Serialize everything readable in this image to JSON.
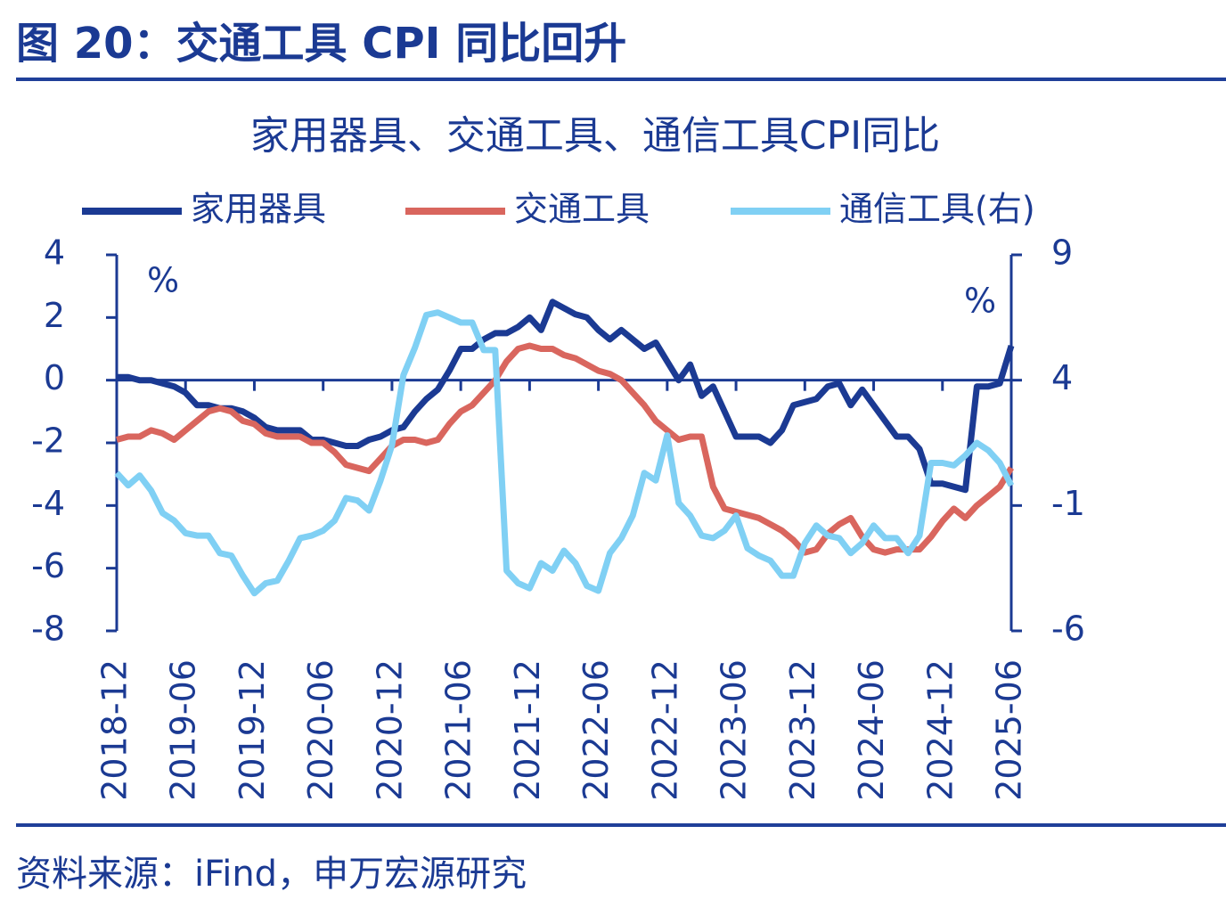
{
  "header": {
    "title": "图 20：交通工具 CPI 同比回升"
  },
  "chart_data": {
    "type": "line",
    "title": "家用器具、交通工具、通信工具CPI同比",
    "y_unit_label": "%",
    "y2_unit_label": "%",
    "categories": [
      "2018-12",
      null,
      null,
      null,
      null,
      null,
      "2019-06",
      null,
      null,
      null,
      null,
      null,
      "2019-12",
      null,
      null,
      null,
      null,
      null,
      "2020-06",
      null,
      null,
      null,
      null,
      null,
      "2020-12",
      null,
      null,
      null,
      null,
      null,
      "2021-06",
      null,
      null,
      null,
      null,
      null,
      "2021-12",
      null,
      null,
      null,
      null,
      null,
      "2022-06",
      null,
      null,
      null,
      null,
      null,
      "2022-12",
      null,
      null,
      null,
      null,
      null,
      "2023-06",
      null,
      null,
      null,
      null,
      null,
      "2023-12",
      null,
      null,
      null,
      null,
      null,
      "2024-06",
      null,
      null,
      null,
      null,
      null,
      "2024-12",
      null,
      null,
      null,
      null,
      null,
      "2025-06"
    ],
    "series": [
      {
        "name": "家用器具",
        "color": "#1b3a93",
        "values": [
          0.1,
          0.1,
          0.0,
          0.0,
          -0.1,
          -0.2,
          -0.4,
          -0.8,
          -0.8,
          -0.9,
          -0.9,
          -1.0,
          -1.2,
          -1.5,
          -1.6,
          -1.6,
          -1.6,
          -1.9,
          -1.9,
          -2.0,
          -2.1,
          -2.1,
          -1.9,
          -1.8,
          -1.6,
          -1.5,
          -1.0,
          -0.6,
          -0.3,
          0.3,
          1.0,
          1.0,
          1.3,
          1.5,
          1.5,
          1.7,
          2.0,
          1.6,
          2.5,
          2.3,
          2.1,
          2.0,
          1.6,
          1.3,
          1.6,
          1.3,
          1.0,
          1.2,
          0.6,
          0.0,
          0.5,
          -0.5,
          -0.2,
          -1.0,
          -1.8,
          -1.8,
          -1.8,
          -2.0,
          -1.6,
          -0.8,
          -0.7,
          -0.6,
          -0.2,
          -0.1,
          -0.8,
          -0.3,
          -0.8,
          -1.3,
          -1.8,
          -1.8,
          -2.2,
          -3.3,
          -3.3,
          -3.4,
          -3.5,
          -0.2,
          -0.2,
          -0.1,
          1.1
        ]
      },
      {
        "name": "交通工具",
        "color": "#d9665e",
        "values": [
          -1.9,
          -1.8,
          -1.8,
          -1.6,
          -1.7,
          -1.9,
          -1.6,
          -1.3,
          -1.0,
          -0.9,
          -1.0,
          -1.3,
          -1.4,
          -1.7,
          -1.8,
          -1.8,
          -1.8,
          -2.0,
          -2.0,
          -2.3,
          -2.7,
          -2.8,
          -2.9,
          -2.5,
          -2.1,
          -1.9,
          -1.9,
          -2.0,
          -1.9,
          -1.4,
          -1.0,
          -0.8,
          -0.4,
          0.0,
          0.6,
          1.0,
          1.1,
          1.0,
          1.0,
          0.8,
          0.7,
          0.5,
          0.3,
          0.2,
          0.0,
          -0.4,
          -0.8,
          -1.3,
          -1.6,
          -1.9,
          -1.8,
          -1.8,
          -3.4,
          -4.1,
          -4.2,
          -4.3,
          -4.4,
          -4.6,
          -4.8,
          -5.1,
          -5.5,
          -5.4,
          -4.9,
          -4.6,
          -4.4,
          -5.0,
          -5.4,
          -5.5,
          -5.4,
          -5.4,
          -5.4,
          -5.0,
          -4.5,
          -4.1,
          -4.4,
          -4.0,
          -3.7,
          -3.4,
          -2.8
        ]
      },
      {
        "name": "通信工具(右)",
        "color": "#80d0f4",
        "axis": "y2",
        "values": [
          0.3,
          -0.2,
          0.2,
          -0.4,
          -1.3,
          -1.6,
          -2.1,
          -2.2,
          -2.2,
          -2.9,
          -3.0,
          -3.8,
          -4.5,
          -4.1,
          -4.0,
          -3.2,
          -2.3,
          -2.2,
          -2.0,
          -1.6,
          -0.7,
          -0.8,
          -1.2,
          0.0,
          1.4,
          4.2,
          5.3,
          6.6,
          6.7,
          6.5,
          6.3,
          6.3,
          5.2,
          5.2,
          -3.6,
          -4.1,
          -4.3,
          -3.3,
          -3.6,
          -2.8,
          -3.3,
          -4.2,
          -4.4,
          -2.9,
          -2.3,
          -1.4,
          0.3,
          0.0,
          1.8,
          -0.9,
          -1.4,
          -2.2,
          -2.3,
          -2.0,
          -1.4,
          -2.7,
          -3.0,
          -3.2,
          -3.8,
          -3.8,
          -2.5,
          -1.8,
          -2.2,
          -2.3,
          -2.9,
          -2.5,
          -1.8,
          -2.3,
          -2.3,
          -2.9,
          -2.2,
          0.7,
          0.7,
          0.6,
          1.0,
          1.5,
          1.2,
          0.7,
          -0.2
        ]
      }
    ],
    "ylim": [
      -8,
      4
    ],
    "yticks": [
      -8,
      -6,
      -4,
      -2,
      0,
      2,
      4
    ],
    "y2lim": [
      -6,
      9
    ],
    "y2ticks": [
      -6,
      -1,
      4,
      9
    ],
    "axis_color": "#1b3a93",
    "legend": "top"
  },
  "footer": {
    "source": "资料来源：iFind，申万宏源研究"
  }
}
